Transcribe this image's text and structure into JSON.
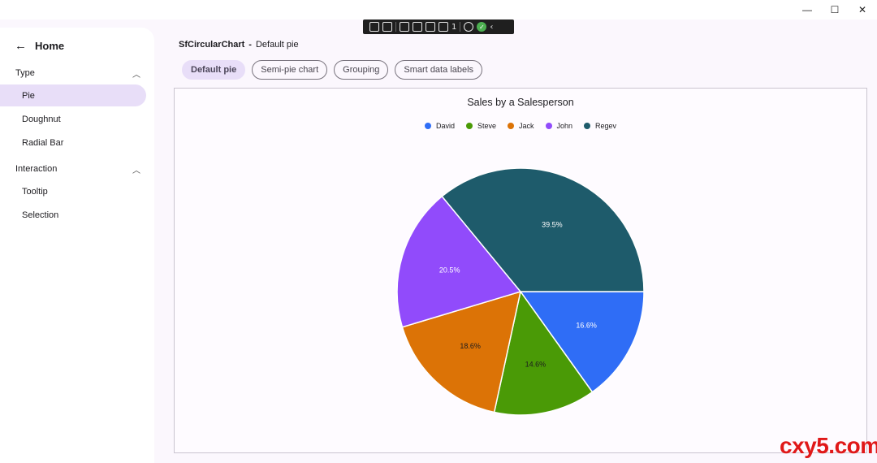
{
  "window": {
    "minimize_glyph": "—",
    "maximize_glyph": "☐",
    "close_glyph": "✕"
  },
  "debug_toolbar": {
    "counter": "1"
  },
  "sidebar": {
    "home_label": "Home",
    "sections": [
      {
        "label": "Type",
        "items": [
          {
            "label": "Pie",
            "active": true
          },
          {
            "label": "Doughnut",
            "active": false
          },
          {
            "label": "Radial Bar",
            "active": false
          }
        ]
      },
      {
        "label": "Interaction",
        "items": [
          {
            "label": "Tooltip",
            "active": false
          },
          {
            "label": "Selection",
            "active": false
          }
        ]
      }
    ]
  },
  "breadcrumb": {
    "control": "SfCircularChart",
    "separator": "-",
    "page": "Default pie"
  },
  "chips": [
    "Default pie",
    "Semi-pie chart",
    "Grouping",
    "Smart data labels"
  ],
  "chart_data": {
    "type": "pie",
    "title": "Sales by a Salesperson",
    "legend_position": "top",
    "categories": [
      "David",
      "Steve",
      "Jack",
      "John",
      "Regev"
    ],
    "values": [
      16.6,
      14.6,
      18.6,
      20.5,
      39.5
    ],
    "labels": [
      "16.6%",
      "14.6%",
      "18.6%",
      "20.5%",
      "39.5%"
    ],
    "colors": [
      "#2f6df6",
      "#4a9a06",
      "#dc7306",
      "#914bfb",
      "#1e5b6b"
    ],
    "label_colors": [
      "#ffffff",
      "#1c1b1f",
      "#1c1b1f",
      "#ffffff",
      "#ffffff"
    ]
  },
  "watermark": "cxy5.com"
}
